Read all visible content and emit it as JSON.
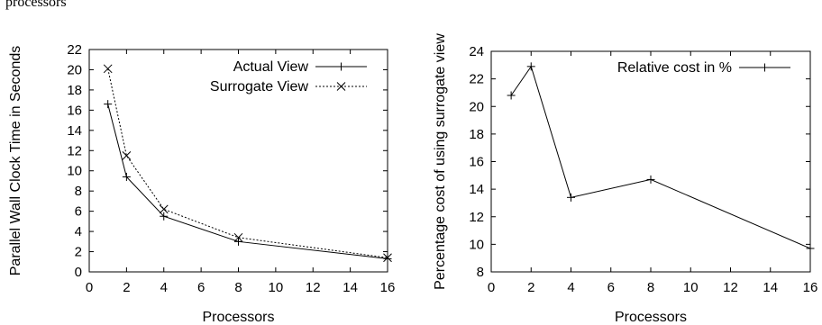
{
  "caption_fragment": "processors",
  "chart_data": [
    {
      "type": "line",
      "title": "",
      "xlabel": "Processors",
      "ylabel": "Parallel Wall Clock Time in Seconds",
      "xlim": [
        0,
        16
      ],
      "ylim": [
        0,
        22
      ],
      "xticks": [
        0,
        2,
        4,
        6,
        8,
        10,
        12,
        14,
        16
      ],
      "yticks": [
        0,
        2,
        4,
        6,
        8,
        10,
        12,
        14,
        16,
        18,
        20,
        22
      ],
      "grid": false,
      "legend_position": "top-right",
      "series": [
        {
          "name": "Actual View",
          "x": [
            1,
            2,
            4,
            8,
            16
          ],
          "y": [
            16.6,
            9.4,
            5.5,
            3.0,
            1.3
          ],
          "marker": "plus",
          "line": "solid"
        },
        {
          "name": "Surrogate View",
          "x": [
            1,
            2,
            4,
            8,
            16
          ],
          "y": [
            20.1,
            11.5,
            6.2,
            3.4,
            1.4
          ],
          "marker": "cross",
          "line": "dotted"
        }
      ]
    },
    {
      "type": "line",
      "title": "",
      "xlabel": "Processors",
      "ylabel": "Percentage cost of using surrogate view",
      "xlim": [
        0,
        16
      ],
      "ylim": [
        8,
        24
      ],
      "xticks": [
        0,
        2,
        4,
        6,
        8,
        10,
        12,
        14,
        16
      ],
      "yticks": [
        8,
        10,
        12,
        14,
        16,
        18,
        20,
        22,
        24
      ],
      "grid": false,
      "legend_position": "top-right",
      "series": [
        {
          "name": "Relative cost in %",
          "x": [
            1,
            2,
            4,
            8,
            16
          ],
          "y": [
            20.8,
            22.9,
            13.4,
            14.7,
            9.7
          ],
          "marker": "plus",
          "line": "solid"
        }
      ]
    }
  ]
}
